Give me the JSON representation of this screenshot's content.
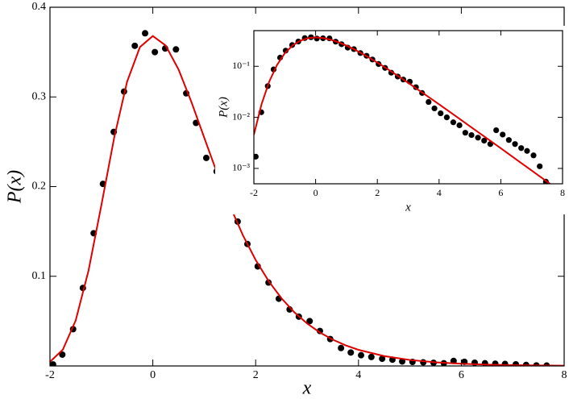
{
  "chart_data": [
    {
      "type": "scatter",
      "xlabel": "x",
      "ylabel": "P(x)",
      "xlim": [
        -2,
        8
      ],
      "ylim": [
        0,
        0.4
      ],
      "xticks": [
        -2,
        0,
        2,
        4,
        6,
        8
      ],
      "yticks": [
        0.1,
        0.2,
        0.3,
        0.4
      ],
      "log_y": false,
      "series": [
        {
          "type": "scatter",
          "color": "#000000",
          "x": [
            -1.94,
            -1.76,
            -1.55,
            -1.36,
            -1.15,
            -0.97,
            -0.76,
            -0.56,
            -0.35,
            -0.15,
            0.04,
            0.24,
            0.45,
            0.65,
            0.84,
            1.04,
            1.24,
            1.45,
            1.65,
            1.84,
            2.04,
            2.25,
            2.45,
            2.66,
            2.84,
            3.05,
            3.25,
            3.45,
            3.66,
            3.85,
            4.05,
            4.25,
            4.46,
            4.66,
            4.85,
            5.05,
            5.26,
            5.46,
            5.66,
            5.85,
            6.06,
            6.26,
            6.46,
            6.66,
            6.85,
            7.06,
            7.26,
            7.46,
            7.66
          ],
          "values": [
            0.0017,
            0.0126,
            0.041,
            0.087,
            0.148,
            0.203,
            0.261,
            0.306,
            0.357,
            0.371,
            0.35,
            0.354,
            0.353,
            0.304,
            0.271,
            0.232,
            0.217,
            0.182,
            0.161,
            0.136,
            0.111,
            0.093,
            0.075,
            0.063,
            0.055,
            0.05,
            0.039,
            0.03,
            0.02,
            0.015,
            0.012,
            0.01,
            0.008,
            0.007,
            0.005,
            0.0045,
            0.004,
            0.0035,
            0.003,
            0.0056,
            0.0046,
            0.0036,
            0.003,
            0.0025,
            0.0022,
            0.0018,
            0.0011,
            0.00055,
            0.0004
          ]
        },
        {
          "type": "line",
          "color": "#e00000",
          "x": [
            -2,
            -1.75,
            -1.5,
            -1.25,
            -1,
            -0.75,
            -0.5,
            -0.25,
            0,
            0.25,
            0.5,
            0.75,
            1,
            1.25,
            1.5,
            1.75,
            2,
            2.25,
            2.5,
            2.75,
            3,
            3.25,
            3.5,
            3.75,
            4,
            4.5,
            5,
            5.5,
            6,
            6.5,
            7,
            7.5,
            8
          ],
          "values": [
            0.00457,
            0.01822,
            0.0507,
            0.1064,
            0.1794,
            0.2549,
            0.317,
            0.3556,
            0.3679,
            0.3574,
            0.3307,
            0.2945,
            0.2546,
            0.2151,
            0.1785,
            0.146,
            0.1182,
            0.0949,
            0.0756,
            0.06,
            0.0474,
            0.0373,
            0.0293,
            0.023,
            0.018,
            0.011,
            0.00669,
            0.00407,
            0.00248,
            0.0015,
            0.00091,
            0.00055,
            0.000335
          ]
        }
      ]
    },
    {
      "type": "scatter",
      "xlabel": "x",
      "ylabel": "P(x)",
      "xlim": [
        -2,
        8
      ],
      "ylim": [
        0.0005,
        0.5
      ],
      "xticks": [
        -2,
        0,
        2,
        4,
        6,
        8
      ],
      "yticks": [
        {
          "value": 0.001,
          "label": "10⁻³"
        },
        {
          "value": 0.01,
          "label": "10⁻²"
        },
        {
          "value": 0.1,
          "label": "10⁻¹"
        }
      ],
      "log_y": true,
      "series": [
        {
          "type": "scatter",
          "color": "#000000",
          "x": [
            -1.94,
            -1.76,
            -1.55,
            -1.36,
            -1.15,
            -0.97,
            -0.76,
            -0.56,
            -0.35,
            -0.15,
            0.04,
            0.24,
            0.45,
            0.65,
            0.84,
            1.04,
            1.24,
            1.45,
            1.65,
            1.84,
            2.04,
            2.25,
            2.45,
            2.66,
            2.84,
            3.05,
            3.25,
            3.45,
            3.66,
            3.85,
            4.05,
            4.25,
            4.46,
            4.66,
            4.85,
            5.05,
            5.26,
            5.46,
            5.66,
            5.85,
            6.06,
            6.26,
            6.46,
            6.66,
            6.85,
            7.06,
            7.26,
            7.46,
            7.66
          ],
          "values": [
            0.0017,
            0.0126,
            0.041,
            0.087,
            0.148,
            0.203,
            0.261,
            0.306,
            0.357,
            0.371,
            0.35,
            0.354,
            0.353,
            0.304,
            0.271,
            0.232,
            0.217,
            0.182,
            0.161,
            0.136,
            0.111,
            0.093,
            0.075,
            0.063,
            0.055,
            0.05,
            0.039,
            0.03,
            0.02,
            0.015,
            0.012,
            0.01,
            0.008,
            0.007,
            0.005,
            0.0045,
            0.004,
            0.0035,
            0.003,
            0.0056,
            0.0046,
            0.0036,
            0.003,
            0.0025,
            0.0022,
            0.0018,
            0.0011,
            0.00055,
            0.0004
          ]
        },
        {
          "type": "line",
          "color": "#e00000",
          "x": [
            -2,
            -1.75,
            -1.5,
            -1.25,
            -1,
            -0.75,
            -0.5,
            -0.25,
            0,
            0.25,
            0.5,
            0.75,
            1,
            1.25,
            1.5,
            1.75,
            2,
            2.25,
            2.5,
            2.75,
            3,
            3.25,
            3.5,
            3.75,
            4,
            4.5,
            5,
            5.5,
            6,
            6.5,
            7,
            7.5,
            8
          ],
          "values": [
            0.00457,
            0.01822,
            0.0507,
            0.1064,
            0.1794,
            0.2549,
            0.317,
            0.3556,
            0.3679,
            0.3574,
            0.3307,
            0.2945,
            0.2546,
            0.2151,
            0.1785,
            0.146,
            0.1182,
            0.0949,
            0.0756,
            0.06,
            0.0474,
            0.0373,
            0.0293,
            0.023,
            0.018,
            0.011,
            0.00669,
            0.00407,
            0.00248,
            0.0015,
            0.00091,
            0.00055,
            0.000335
          ]
        }
      ]
    }
  ]
}
